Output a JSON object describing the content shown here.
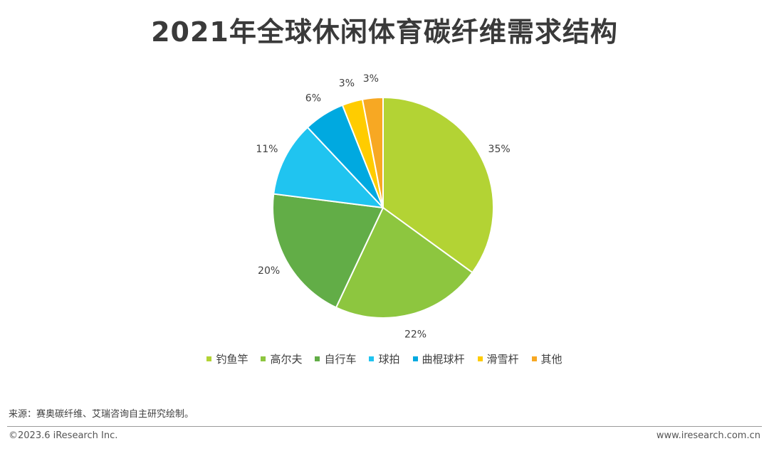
{
  "title": "2021年全球休闲体育碳纤维需求结构",
  "chart_data": {
    "type": "pie",
    "title": "2021年全球休闲体育碳纤维需求结构",
    "categories": [
      "钓鱼竿",
      "高尔夫",
      "自行车",
      "球拍",
      "曲棍球杆",
      "滑雪杆",
      "其他"
    ],
    "values": [
      35,
      22,
      20,
      11,
      6,
      3,
      3
    ],
    "labels": [
      "35%",
      "22%",
      "20%",
      "11%",
      "6%",
      "3%",
      "3%"
    ],
    "colors": [
      "#b3d334",
      "#8dc63f",
      "#62ad47",
      "#20c4f0",
      "#00a9e0",
      "#ffcc00",
      "#f7a823"
    ],
    "legend_position": "bottom",
    "start_angle": "top",
    "direction": "clockwise"
  },
  "source": "来源：赛奥碳纤维、艾瑞咨询自主研究绘制。",
  "footer": {
    "copyright": "©2023.6 iResearch Inc.",
    "website": "www.iresearch.com.cn"
  }
}
